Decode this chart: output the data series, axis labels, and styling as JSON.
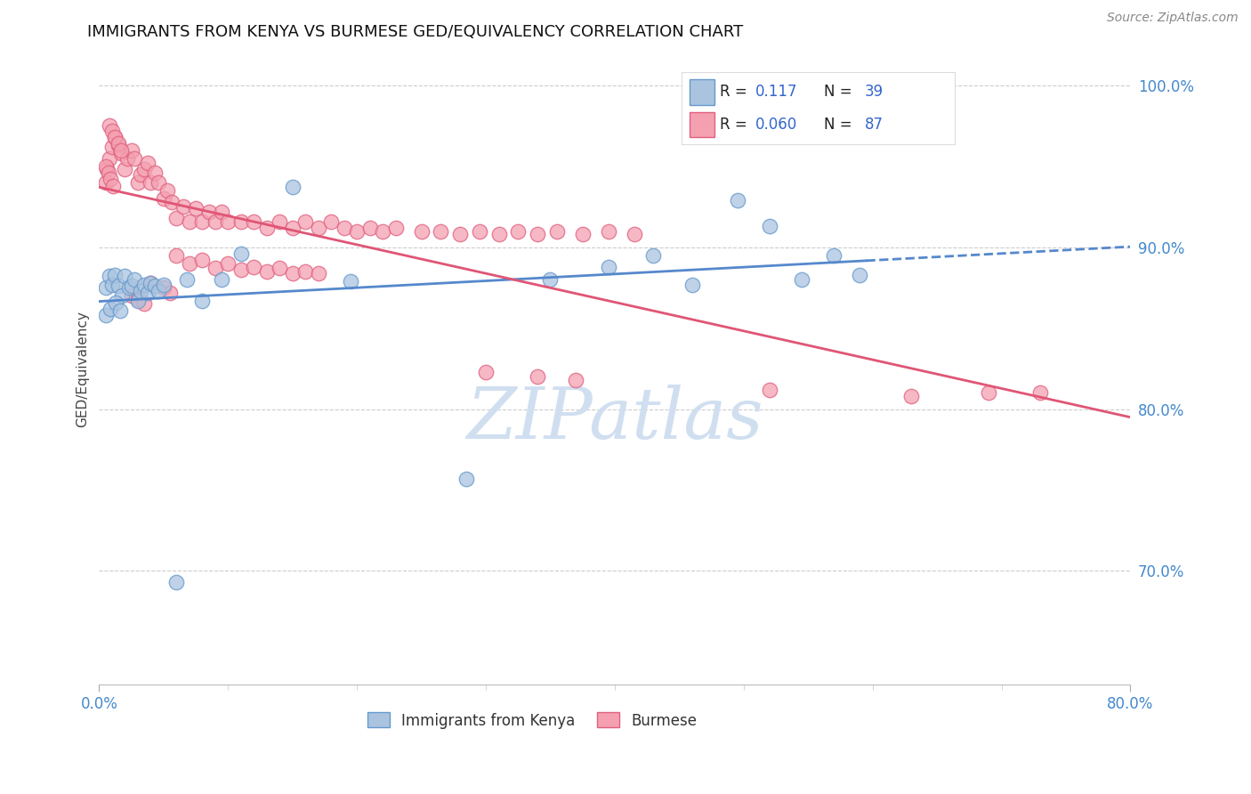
{
  "title": "IMMIGRANTS FROM KENYA VS BURMESE GED/EQUIVALENCY CORRELATION CHART",
  "source_text": "Source: ZipAtlas.com",
  "ylabel": "GED/Equivalency",
  "xlim": [
    0.0,
    0.8
  ],
  "ylim": [
    0.63,
    1.02
  ],
  "ytick_positions": [
    0.7,
    0.8,
    0.9,
    1.0
  ],
  "ytick_labels": [
    "70.0%",
    "80.0%",
    "90.0%",
    "100.0%"
  ],
  "grid_color": "#cccccc",
  "background_color": "#ffffff",
  "kenya_color": "#aac4e0",
  "burmese_color": "#f4a0b0",
  "kenya_edge_color": "#6699cc",
  "burmese_edge_color": "#e06080",
  "trend_kenya_color": "#5588cc",
  "trend_burmese_color": "#e05575",
  "watermark_color": "#d0dff0",
  "legend_kenya_label": "Immigrants from Kenya",
  "legend_burmese_label": "Burmese",
  "kenya_x": [
    0.005,
    0.008,
    0.01,
    0.012,
    0.015,
    0.018,
    0.02,
    0.023,
    0.025,
    0.027,
    0.03,
    0.032,
    0.035,
    0.038,
    0.04,
    0.043,
    0.046,
    0.05,
    0.06,
    0.068,
    0.08,
    0.095,
    0.11,
    0.15,
    0.195,
    0.285,
    0.35,
    0.395,
    0.43,
    0.46,
    0.495,
    0.52,
    0.545,
    0.57,
    0.59,
    0.005,
    0.009,
    0.013,
    0.016
  ],
  "kenya_y": [
    0.875,
    0.882,
    0.877,
    0.883,
    0.876,
    0.87,
    0.882,
    0.875,
    0.876,
    0.88,
    0.867,
    0.873,
    0.877,
    0.872,
    0.878,
    0.876,
    0.873,
    0.877,
    0.693,
    0.88,
    0.867,
    0.88,
    0.896,
    0.937,
    0.879,
    0.757,
    0.88,
    0.888,
    0.895,
    0.877,
    0.929,
    0.913,
    0.88,
    0.895,
    0.883,
    0.858,
    0.862,
    0.866,
    0.861
  ],
  "burmese_x": [
    0.005,
    0.006,
    0.008,
    0.01,
    0.012,
    0.015,
    0.017,
    0.02,
    0.022,
    0.025,
    0.027,
    0.03,
    0.032,
    0.035,
    0.038,
    0.04,
    0.043,
    0.046,
    0.05,
    0.053,
    0.056,
    0.06,
    0.065,
    0.07,
    0.075,
    0.08,
    0.085,
    0.09,
    0.095,
    0.1,
    0.11,
    0.12,
    0.13,
    0.14,
    0.15,
    0.16,
    0.17,
    0.18,
    0.19,
    0.2,
    0.21,
    0.22,
    0.23,
    0.25,
    0.265,
    0.28,
    0.295,
    0.31,
    0.325,
    0.34,
    0.355,
    0.375,
    0.395,
    0.415,
    0.06,
    0.07,
    0.08,
    0.09,
    0.1,
    0.11,
    0.12,
    0.13,
    0.14,
    0.15,
    0.16,
    0.17,
    0.04,
    0.05,
    0.055,
    0.025,
    0.03,
    0.035,
    0.008,
    0.01,
    0.012,
    0.015,
    0.017,
    0.005,
    0.007,
    0.009,
    0.011,
    0.3,
    0.34,
    0.37,
    0.52,
    0.63,
    0.69,
    0.73
  ],
  "burmese_y": [
    0.94,
    0.948,
    0.955,
    0.962,
    0.968,
    0.963,
    0.958,
    0.948,
    0.955,
    0.96,
    0.955,
    0.94,
    0.945,
    0.948,
    0.952,
    0.94,
    0.946,
    0.94,
    0.93,
    0.935,
    0.928,
    0.918,
    0.925,
    0.916,
    0.924,
    0.916,
    0.922,
    0.916,
    0.922,
    0.916,
    0.916,
    0.916,
    0.912,
    0.916,
    0.912,
    0.916,
    0.912,
    0.916,
    0.912,
    0.91,
    0.912,
    0.91,
    0.912,
    0.91,
    0.91,
    0.908,
    0.91,
    0.908,
    0.91,
    0.908,
    0.91,
    0.908,
    0.91,
    0.908,
    0.895,
    0.89,
    0.892,
    0.887,
    0.89,
    0.886,
    0.888,
    0.885,
    0.887,
    0.884,
    0.885,
    0.884,
    0.878,
    0.875,
    0.872,
    0.87,
    0.868,
    0.865,
    0.975,
    0.972,
    0.968,
    0.964,
    0.96,
    0.95,
    0.946,
    0.942,
    0.938,
    0.823,
    0.82,
    0.818,
    0.812,
    0.808,
    0.81,
    0.81
  ]
}
